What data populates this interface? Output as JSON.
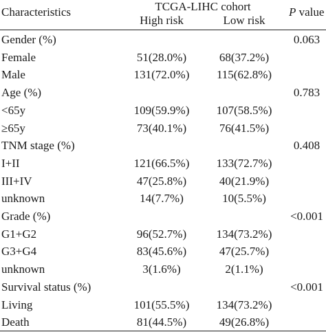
{
  "header": {
    "characteristics": "Characteristics",
    "cohort": "TCGA-LIHC cohort",
    "high_risk": "High risk",
    "low_risk": "Low risk",
    "p_letter": "P",
    "p_rest": " value"
  },
  "rows": [
    {
      "label": "Gender (%)",
      "high": "",
      "low": "",
      "p": "0.063"
    },
    {
      "label": "Female",
      "high": "51(28.0%)",
      "low": "68(37.2%)",
      "p": ""
    },
    {
      "label": "Male",
      "high": "131(72.0%)",
      "low": "115(62.8%)",
      "p": ""
    },
    {
      "label": "Age (%)",
      "high": "",
      "low": "",
      "p": "0.783"
    },
    {
      "label": "<65y",
      "high": "109(59.9%)",
      "low": "107(58.5%)",
      "p": ""
    },
    {
      "label": "≥65y",
      "high": "73(40.1%)",
      "low": "76(41.5%)",
      "p": ""
    },
    {
      "label": "TNM stage (%)",
      "high": "",
      "low": "",
      "p": "0.408"
    },
    {
      "label": "I+II",
      "high": "121(66.5%)",
      "low": "133(72.7%)",
      "p": ""
    },
    {
      "label": "III+IV",
      "high": "47(25.8%)",
      "low": "40(21.9%)",
      "p": ""
    },
    {
      "label": "unknown",
      "high": "14(7.7%)",
      "low": "10(5.5%)",
      "p": ""
    },
    {
      "label": "Grade (%)",
      "high": "",
      "low": "",
      "p": "<0.001"
    },
    {
      "label": "G1+G2",
      "high": "96(52.7%)",
      "low": "134(73.2%)",
      "p": ""
    },
    {
      "label": "G3+G4",
      "high": "83(45.6%)",
      "low": "47(25.7%)",
      "p": ""
    },
    {
      "label": "unknown",
      "high": "3(1.6%)",
      "low": "2(1.1%)",
      "p": ""
    },
    {
      "label": "Survival status (%)",
      "high": "",
      "low": "",
      "p": "<0.001"
    },
    {
      "label": "Living",
      "high": "101(55.5%)",
      "low": "134(73.2%)",
      "p": ""
    },
    {
      "label": "Death",
      "high": "81(44.5%)",
      "low": "49(26.8%)",
      "p": ""
    }
  ]
}
